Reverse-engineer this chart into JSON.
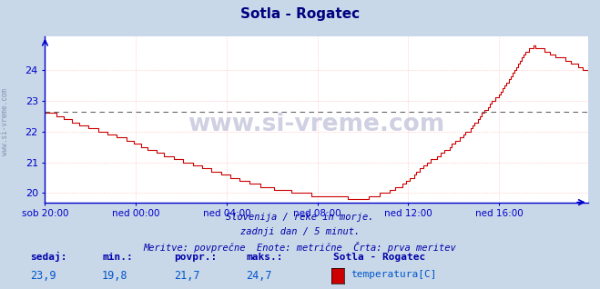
{
  "title": "Sotla - Rogatec",
  "title_color": "#000080",
  "bg_color": "#c8d8e8",
  "plot_bg_color": "#ffffff",
  "line_color": "#cc0000",
  "grid_color": "#ffb0b0",
  "grid_linestyle": ":",
  "axis_color": "#0000cc",
  "dashed_line_y": 22.65,
  "dashed_line_color": "#666666",
  "ylim": [
    19.7,
    25.1
  ],
  "yticks": [
    20,
    21,
    22,
    23,
    24
  ],
  "xlim": [
    0,
    287
  ],
  "xtick_positions": [
    0,
    48,
    96,
    144,
    192,
    240
  ],
  "xtick_labels": [
    "sob 20:00",
    "ned 00:00",
    "ned 04:00",
    "ned 08:00",
    "ned 12:00",
    "ned 16:00"
  ],
  "watermark_text": "www.si-vreme.com",
  "subtitle1": "Slovenija / reke in morje.",
  "subtitle2": "zadnji dan / 5 minut.",
  "subtitle3": "Meritve: povprečne  Enote: metrične  Črta: prva meritev",
  "footer_labels": [
    "sedaj:",
    "min.:",
    "povpr.:",
    "maks.:"
  ],
  "footer_values": [
    "23,9",
    "19,8",
    "21,7",
    "24,7"
  ],
  "footer_station": "Sotla - Rogatec",
  "footer_series": "temperatura[C]",
  "legend_color": "#cc0000",
  "watermark_color": "#aaaacc",
  "subtitle_color": "#0000aa",
  "footer_label_color": "#0000aa",
  "footer_value_color": "#0055cc",
  "sidebar_text": "www.si-vreme.com",
  "sidebar_color": "#7788aa",
  "keypoints_x": [
    0,
    5,
    12,
    20,
    30,
    40,
    50,
    60,
    70,
    80,
    90,
    100,
    110,
    120,
    130,
    140,
    150,
    160,
    170,
    180,
    190,
    200,
    205,
    210,
    215,
    220,
    225,
    230,
    235,
    240,
    245,
    248,
    252,
    255,
    258,
    262,
    265,
    268,
    272,
    276,
    280,
    284,
    287
  ],
  "keypoints_y": [
    22.6,
    22.55,
    22.4,
    22.2,
    22.0,
    21.8,
    21.55,
    21.3,
    21.1,
    20.9,
    20.7,
    20.5,
    20.3,
    20.15,
    20.05,
    19.95,
    19.88,
    19.85,
    19.85,
    20.0,
    20.3,
    20.9,
    21.1,
    21.3,
    21.55,
    21.85,
    22.1,
    22.5,
    22.9,
    23.2,
    23.7,
    24.0,
    24.4,
    24.65,
    24.75,
    24.7,
    24.6,
    24.5,
    24.4,
    24.3,
    24.2,
    24.05,
    23.9
  ]
}
